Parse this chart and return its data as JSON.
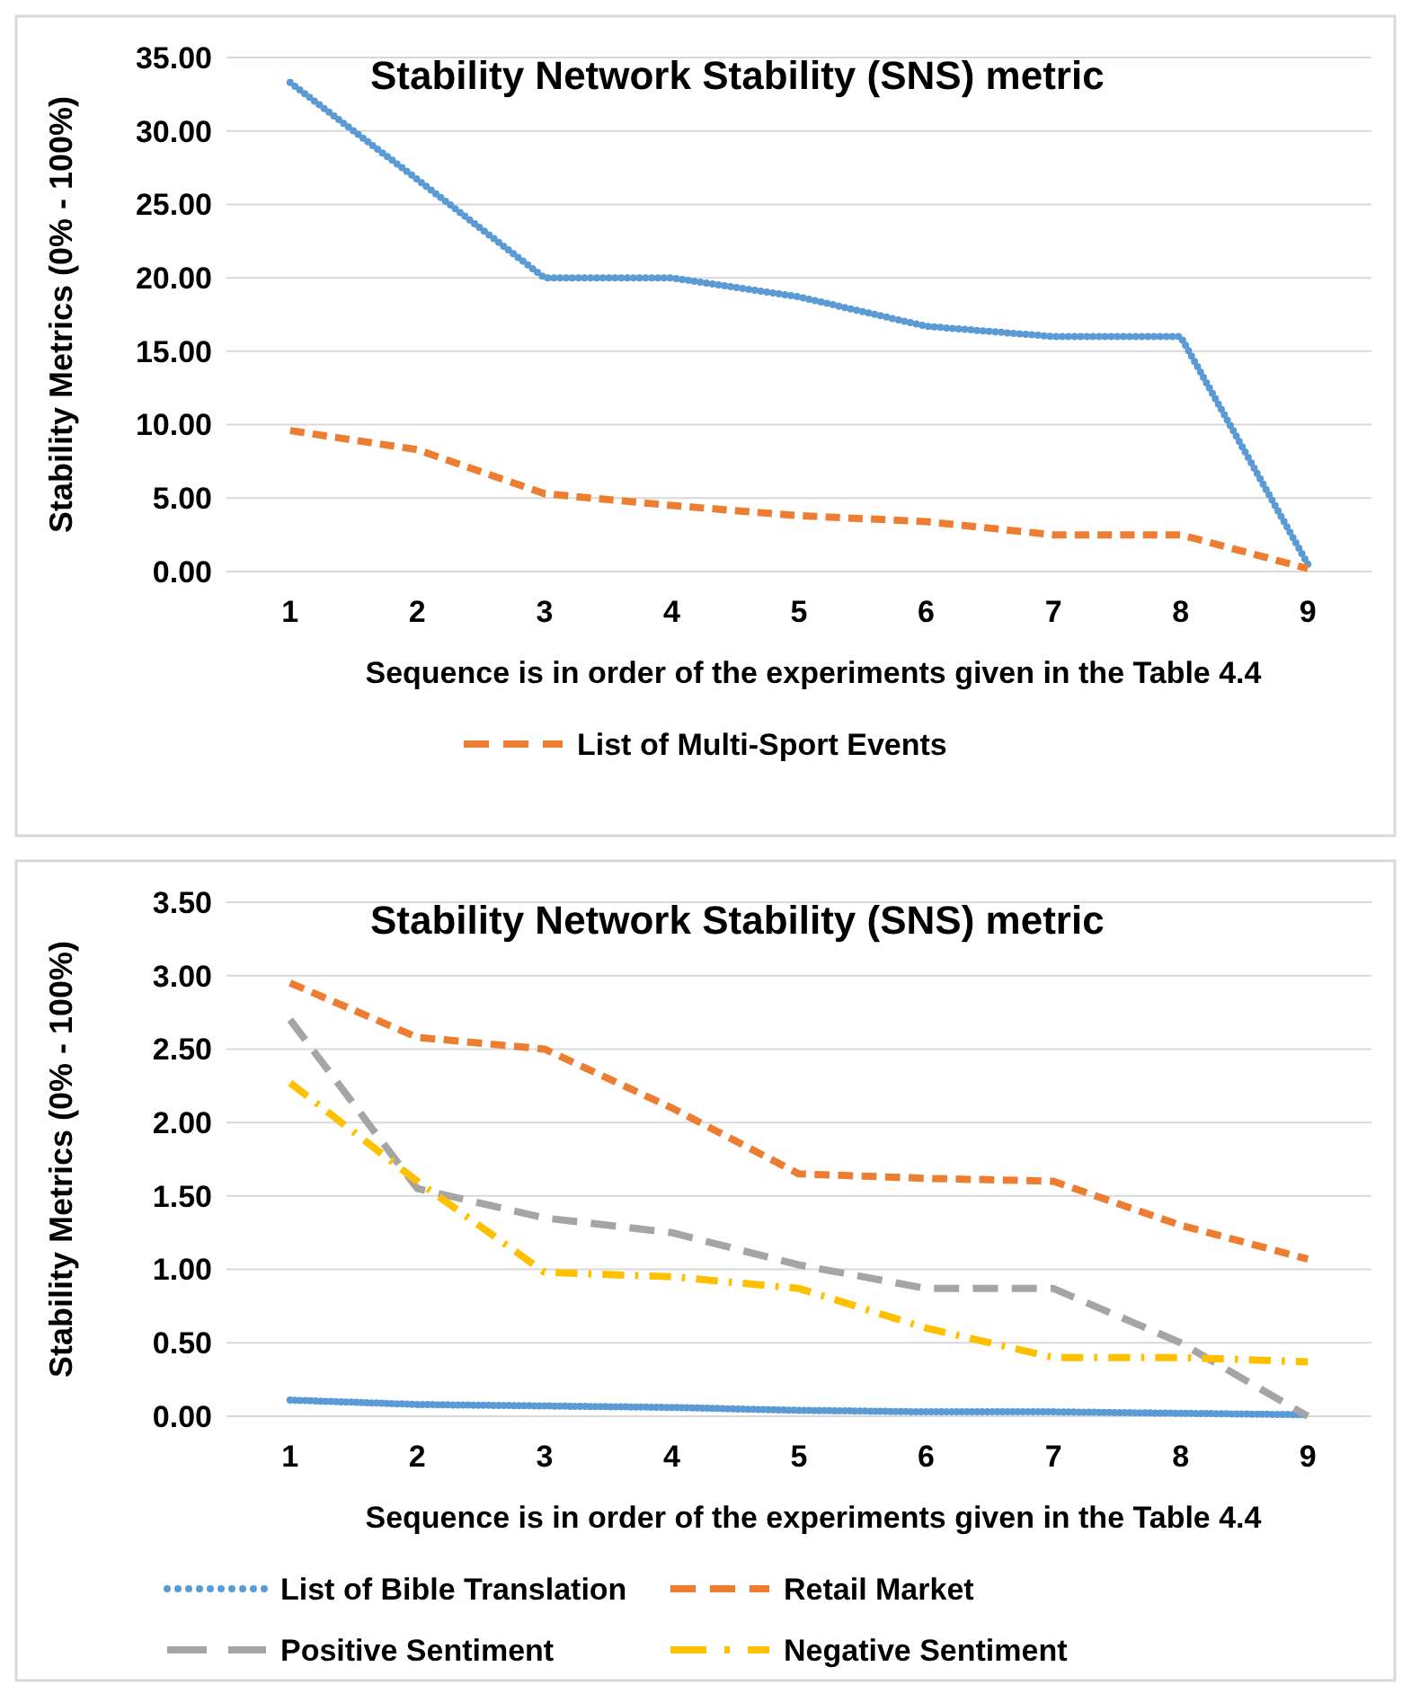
{
  "chart_data": [
    {
      "type": "line",
      "title": "Stability Network Stability (SNS) metric",
      "xlabel": "Sequence is in order of the experiments given in the Table 4.4",
      "ylabel": "Stability Metrics (0% - 100%)",
      "categories": [
        "1",
        "2",
        "3",
        "4",
        "5",
        "6",
        "7",
        "8",
        "9"
      ],
      "ylim": [
        0,
        35
      ],
      "yticks": [
        {
          "value": 0,
          "label": "0.00"
        },
        {
          "value": 5,
          "label": "5.00"
        },
        {
          "value": 10,
          "label": "10.00"
        },
        {
          "value": 15,
          "label": "15.00"
        },
        {
          "value": 20,
          "label": "20.00"
        },
        {
          "value": 25,
          "label": "25.00"
        },
        {
          "value": 30,
          "label": "30.00"
        },
        {
          "value": 35,
          "label": "35.00"
        }
      ],
      "grid": "y",
      "legend": "bottom",
      "marker": "none",
      "series": [
        {
          "color": "#5b9bd5",
          "line_style": "dotted",
          "values": [
            33.3,
            26.7,
            20,
            20,
            18.7,
            16.7,
            16,
            16,
            0.5
          ]
        },
        {
          "name": "List of Multi-Sport Events",
          "color": "#ed7d31",
          "line_style": "dashed",
          "values": [
            9.6,
            8.3,
            5.3,
            4.5,
            3.8,
            3.4,
            2.5,
            2.5,
            0.2
          ]
        }
      ]
    },
    {
      "type": "line",
      "title": "Stability Network Stability (SNS) metric",
      "xlabel": "Sequence is in order of the experiments given in the Table 4.4",
      "ylabel": "Stability Metrics (0% - 100%)",
      "categories": [
        "1",
        "2",
        "3",
        "4",
        "5",
        "6",
        "7",
        "8",
        "9"
      ],
      "ylim": [
        0,
        3.5
      ],
      "yticks": [
        {
          "value": 0,
          "label": "0.00"
        },
        {
          "value": 0.5,
          "label": "0.50"
        },
        {
          "value": 1,
          "label": "1.00"
        },
        {
          "value": 1.5,
          "label": "1.50"
        },
        {
          "value": 2,
          "label": "2.00"
        },
        {
          "value": 2.5,
          "label": "2.50"
        },
        {
          "value": 3,
          "label": "3.00"
        },
        {
          "value": 3.5,
          "label": "3.50"
        }
      ],
      "grid": "y",
      "legend": "bottom",
      "marker": "none",
      "series": [
        {
          "name": "List of Bible Translation",
          "color": "#5b9bd5",
          "line_style": "dotted",
          "values": [
            0.11,
            0.08,
            0.07,
            0.06,
            0.04,
            0.03,
            0.03,
            0.02,
            0.01
          ]
        },
        {
          "name": "Retail Market",
          "color": "#ed7d31",
          "line_style": "dashed",
          "values": [
            2.95,
            2.58,
            2.5,
            2.1,
            1.65,
            1.62,
            1.6,
            1.3,
            1.07
          ]
        },
        {
          "name": "Positive Sentiment",
          "color": "#a5a5a5",
          "line_style": "dashed",
          "values": [
            2.7,
            1.55,
            1.35,
            1.25,
            1.03,
            0.87,
            0.87,
            0.5,
            0
          ]
        },
        {
          "name": "Negative Sentiment",
          "color": "#ffc000",
          "line_style": "dashed",
          "values": [
            2.27,
            1.6,
            0.98,
            0.95,
            0.87,
            0.6,
            0.4,
            0.4,
            0.37
          ]
        }
      ]
    }
  ]
}
